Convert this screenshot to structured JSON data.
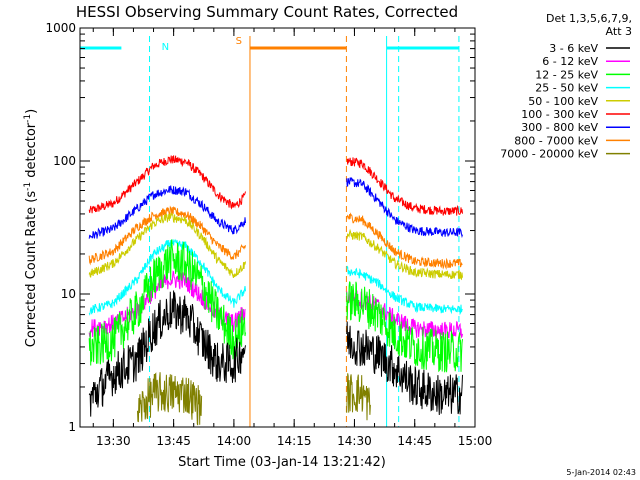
{
  "chart_data": {
    "type": "line",
    "title": "HESSI Observing Summary Count Rates, Corrected",
    "xlabel": "Start Time (03-Jan-14 13:21:42)",
    "ylabel": "Corrected Count Rate (s⁻¹ detector⁻¹)",
    "ylabel_main": "Corrected Count Rate (s",
    "ylabel_sup1": "-1",
    "ylabel_mid": " detector",
    "ylabel_sup2": "-1",
    "ylabel_end": ")",
    "y_scale": "log",
    "ylim": [
      1,
      1000
    ],
    "xlim": [
      "13:21:42",
      "15:00:00"
    ],
    "x_ticks": [
      "13:30",
      "13:45",
      "14:00",
      "14:15",
      "14:30",
      "14:45",
      "15:00"
    ],
    "y_ticks": [
      "1",
      "10",
      "100",
      "1000"
    ],
    "timestamp": "5-Jan-2014 02:43",
    "legend": {
      "header": [
        "Det 1,3,5,6,7,9,",
        "Att 3"
      ],
      "entries": [
        {
          "label": "3 - 6 keV",
          "color": "#000000"
        },
        {
          "label": "6 - 12 keV",
          "color": "#ff00ff"
        },
        {
          "label": "12 - 25 keV",
          "color": "#00ff00"
        },
        {
          "label": "25 - 50 keV",
          "color": "#00ffff"
        },
        {
          "label": "50 - 100 keV",
          "color": "#cccc00"
        },
        {
          "label": "100 - 300 keV",
          "color": "#ff0000"
        },
        {
          "label": "300 - 800 keV",
          "color": "#0000ff"
        },
        {
          "label": "800 - 7000 keV",
          "color": "#ff8000"
        },
        {
          "label": "7000 - 20000 keV",
          "color": "#808000"
        }
      ]
    },
    "flags": [
      {
        "label": "N",
        "color": "#00ffff"
      },
      {
        "label": "S",
        "color": "#ff8000"
      }
    ],
    "series": [
      {
        "name": "3 - 6 keV",
        "color": "#000000",
        "points": [
          [
            "13:24",
            1.6
          ],
          [
            "13:30",
            2.5
          ],
          [
            "13:36",
            3.2
          ],
          [
            "13:40",
            5.5
          ],
          [
            "13:44",
            7.5
          ],
          [
            "13:48",
            7.0
          ],
          [
            "13:52",
            4.5
          ],
          [
            "13:56",
            3.0
          ],
          [
            "14:00",
            3.0
          ],
          [
            "14:03",
            4.2
          ],
          [
            "14:28",
            4.5
          ],
          [
            "14:32",
            4.0
          ],
          [
            "14:36",
            3.5
          ],
          [
            "14:40",
            2.8
          ],
          [
            "14:45",
            2.0
          ],
          [
            "14:52",
            1.7
          ],
          [
            "14:57",
            1.8
          ]
        ]
      },
      {
        "name": "6 - 12 keV",
        "color": "#ff00ff",
        "points": [
          [
            "13:24",
            5.5
          ],
          [
            "13:30",
            6.0
          ],
          [
            "13:36",
            7.5
          ],
          [
            "13:40",
            10.5
          ],
          [
            "13:44",
            13.0
          ],
          [
            "13:48",
            12.5
          ],
          [
            "13:52",
            9.5
          ],
          [
            "13:56",
            7.0
          ],
          [
            "14:00",
            6.0
          ],
          [
            "14:03",
            7.5
          ],
          [
            "14:28",
            9.5
          ],
          [
            "14:32",
            9.0
          ],
          [
            "14:36",
            8.0
          ],
          [
            "14:40",
            6.5
          ],
          [
            "14:45",
            5.5
          ],
          [
            "14:52",
            5.3
          ],
          [
            "14:57",
            5.3
          ]
        ]
      },
      {
        "name": "12 - 25 keV",
        "color": "#00ff00",
        "points": [
          [
            "13:24",
            3.8
          ],
          [
            "13:30",
            4.5
          ],
          [
            "13:36",
            7.5
          ],
          [
            "13:40",
            13.0
          ],
          [
            "13:44",
            18.0
          ],
          [
            "13:48",
            17.0
          ],
          [
            "13:52",
            12.0
          ],
          [
            "13:56",
            7.0
          ],
          [
            "14:00",
            4.5
          ],
          [
            "14:03",
            6.0
          ],
          [
            "14:28",
            9.0
          ],
          [
            "14:32",
            8.5
          ],
          [
            "14:36",
            7.0
          ],
          [
            "14:40",
            5.0
          ],
          [
            "14:45",
            4.0
          ],
          [
            "14:52",
            3.7
          ],
          [
            "14:57",
            3.7
          ]
        ]
      },
      {
        "name": "25 - 50 keV",
        "color": "#00ffff",
        "points": [
          [
            "13:24",
            7.5
          ],
          [
            "13:30",
            8.5
          ],
          [
            "13:36",
            13.0
          ],
          [
            "13:40",
            20.0
          ],
          [
            "13:44",
            24.0
          ],
          [
            "13:48",
            23.0
          ],
          [
            "13:52",
            17.0
          ],
          [
            "13:56",
            11.0
          ],
          [
            "14:00",
            8.5
          ],
          [
            "14:03",
            11.0
          ],
          [
            "14:28",
            15.0
          ],
          [
            "14:32",
            14.0
          ],
          [
            "14:36",
            12.0
          ],
          [
            "14:40",
            9.5
          ],
          [
            "14:45",
            8.0
          ],
          [
            "14:52",
            7.7
          ],
          [
            "14:57",
            7.7
          ]
        ]
      },
      {
        "name": "50 - 100 keV",
        "color": "#cccc00",
        "points": [
          [
            "13:24",
            14.0
          ],
          [
            "13:30",
            17.0
          ],
          [
            "13:36",
            26.0
          ],
          [
            "13:40",
            34.0
          ],
          [
            "13:44",
            38.0
          ],
          [
            "13:48",
            36.0
          ],
          [
            "13:52",
            27.0
          ],
          [
            "13:56",
            18.0
          ],
          [
            "14:00",
            14.0
          ],
          [
            "14:03",
            17.0
          ],
          [
            "14:28",
            28.0
          ],
          [
            "14:32",
            27.0
          ],
          [
            "14:36",
            22.0
          ],
          [
            "14:40",
            17.0
          ],
          [
            "14:45",
            14.5
          ],
          [
            "14:52",
            14.0
          ],
          [
            "14:57",
            14.0
          ]
        ]
      },
      {
        "name": "100 - 300 keV",
        "color": "#ff0000",
        "points": [
          [
            "13:24",
            42.0
          ],
          [
            "13:30",
            48.0
          ],
          [
            "13:36",
            70.0
          ],
          [
            "13:40",
            92.0
          ],
          [
            "13:44",
            103.0
          ],
          [
            "13:48",
            99.0
          ],
          [
            "13:52",
            78.0
          ],
          [
            "13:56",
            56.0
          ],
          [
            "14:00",
            45.0
          ],
          [
            "14:03",
            55.0
          ],
          [
            "14:28",
            100.0
          ],
          [
            "14:32",
            96.0
          ],
          [
            "14:36",
            72.0
          ],
          [
            "14:40",
            52.0
          ],
          [
            "14:45",
            44.0
          ],
          [
            "14:52",
            42.0
          ],
          [
            "14:57",
            42.0
          ]
        ]
      },
      {
        "name": "300 - 800 keV",
        "color": "#0000ff",
        "points": [
          [
            "13:24",
            27.0
          ],
          [
            "13:30",
            31.0
          ],
          [
            "13:36",
            44.0
          ],
          [
            "13:40",
            56.0
          ],
          [
            "13:44",
            61.0
          ],
          [
            "13:48",
            59.0
          ],
          [
            "13:52",
            47.0
          ],
          [
            "13:56",
            35.0
          ],
          [
            "14:00",
            30.0
          ],
          [
            "14:03",
            36.0
          ],
          [
            "14:28",
            70.0
          ],
          [
            "14:32",
            67.0
          ],
          [
            "14:36",
            50.0
          ],
          [
            "14:40",
            36.0
          ],
          [
            "14:45",
            30.0
          ],
          [
            "14:52",
            29.0
          ],
          [
            "14:57",
            29.0
          ]
        ]
      },
      {
        "name": "800 - 7000 keV",
        "color": "#ff8000",
        "points": [
          [
            "13:24",
            18.0
          ],
          [
            "13:30",
            21.0
          ],
          [
            "13:36",
            32.0
          ],
          [
            "13:40",
            39.0
          ],
          [
            "13:44",
            42.0
          ],
          [
            "13:48",
            40.0
          ],
          [
            "13:52",
            32.0
          ],
          [
            "13:56",
            23.0
          ],
          [
            "14:00",
            19.0
          ],
          [
            "14:03",
            23.0
          ],
          [
            "14:28",
            38.0
          ],
          [
            "14:32",
            36.0
          ],
          [
            "14:36",
            28.0
          ],
          [
            "14:40",
            21.0
          ],
          [
            "14:45",
            17.5
          ],
          [
            "14:52",
            17.0
          ],
          [
            "14:57",
            17.0
          ]
        ]
      },
      {
        "name": "7000 - 20000 keV",
        "color": "#808000",
        "points": [
          [
            "13:36",
            1.3
          ],
          [
            "13:40",
            1.8
          ],
          [
            "13:44",
            1.8
          ],
          [
            "13:48",
            1.8
          ],
          [
            "13:52",
            1.4
          ],
          [
            "14:28",
            1.8
          ],
          [
            "14:32",
            1.8
          ],
          [
            "14:34",
            1.4
          ]
        ]
      }
    ]
  }
}
